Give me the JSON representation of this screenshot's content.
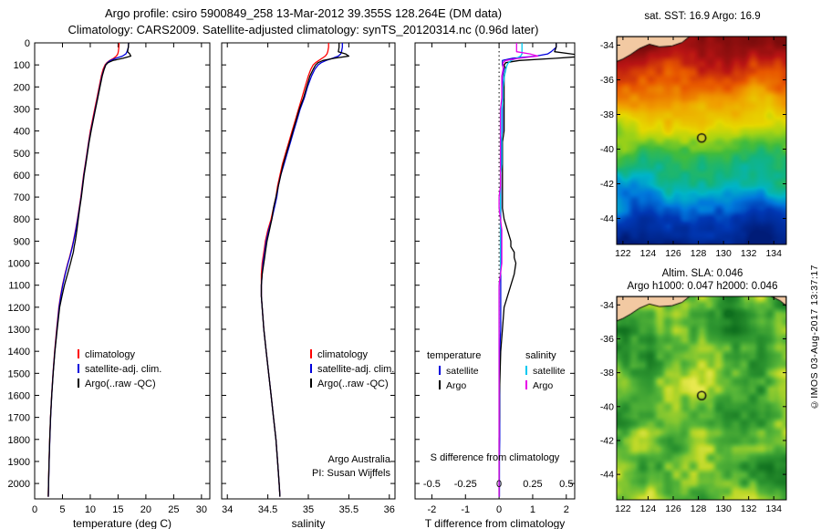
{
  "header": {
    "line1": "Argo profile: csiro 5900849_258 13-Mar-2012 39.355S 128.264E (DM data)",
    "line2": "Climatology: CARS2009. Satellite-adjusted climatology: synTS_20120314.nc (0.96d later)"
  },
  "watermark": "©IMOS 03-Aug-2017 13:37:17",
  "colors": {
    "climatology": "#ff0000",
    "satellite_adjusted": "#0000dd",
    "argo": "#000000",
    "satellite_salinity": "#00c8f0",
    "argo_salinity": "#e800e8"
  },
  "chart_data": [
    {
      "type": "line",
      "title": "",
      "xlabel": "temperature (deg C)",
      "ylabel": "",
      "xlim": [
        0,
        31.5
      ],
      "xticks": [
        0,
        5,
        10,
        15,
        20,
        25,
        30
      ],
      "ylim": [
        0,
        2070
      ],
      "yticks": [
        0,
        100,
        200,
        300,
        400,
        500,
        600,
        700,
        800,
        900,
        1000,
        1100,
        1200,
        1300,
        1400,
        1500,
        1600,
        1700,
        1800,
        1900,
        2000
      ],
      "depths_m": [
        0,
        20,
        40,
        50,
        60,
        70,
        80,
        90,
        100,
        120,
        150,
        200,
        250,
        300,
        350,
        400,
        450,
        500,
        550,
        600,
        650,
        700,
        750,
        800,
        850,
        900,
        925,
        950,
        975,
        1000,
        1050,
        1100,
        1150,
        1200,
        1300,
        1400,
        1500,
        1600,
        1700,
        1800,
        1900,
        2000,
        2060
      ],
      "legend": [
        "climatology",
        "satellite-adj. clim.",
        "Argo(..raw -QC)"
      ],
      "series": [
        {
          "name": "climatology",
          "color": "#ff0000",
          "values": [
            15.2,
            15.15,
            15.05,
            14.95,
            14.7,
            14.2,
            13.5,
            13.0,
            12.65,
            12.3,
            12.0,
            11.6,
            11.2,
            10.8,
            10.4,
            10.0,
            9.7,
            9.4,
            9.1,
            8.8,
            8.55,
            8.3,
            8.0,
            7.7,
            7.35,
            6.95,
            6.75,
            6.5,
            6.25,
            5.95,
            5.45,
            5.0,
            4.65,
            4.35,
            3.95,
            3.6,
            3.3,
            3.05,
            2.85,
            2.7,
            2.6,
            2.5,
            2.45
          ]
        },
        {
          "name": "satellite-adj. clim.",
          "color": "#0000dd",
          "values": [
            16.9,
            16.85,
            16.6,
            16.4,
            15.8,
            14.6,
            13.6,
            13.1,
            12.75,
            12.45,
            12.1,
            11.7,
            11.3,
            10.9,
            10.5,
            10.1,
            9.75,
            9.45,
            9.15,
            8.85,
            8.6,
            8.35,
            8.05,
            7.75,
            7.4,
            7.0,
            6.8,
            6.55,
            6.3,
            6.0,
            5.5,
            5.05,
            4.7,
            4.4,
            4.0,
            3.62,
            3.32,
            3.07,
            2.87,
            2.72,
            2.61,
            2.51,
            2.46
          ]
        },
        {
          "name": "Argo(..raw -QC)",
          "color": "#000000",
          "values": [
            16.9,
            16.85,
            16.7,
            17.1,
            17.3,
            15.9,
            14.1,
            13.2,
            12.8,
            12.5,
            12.15,
            11.75,
            11.35,
            10.95,
            10.55,
            10.15,
            9.8,
            9.5,
            9.2,
            8.9,
            8.65,
            8.4,
            8.1,
            7.85,
            7.6,
            7.3,
            7.1,
            6.95,
            6.7,
            6.45,
            5.9,
            5.35,
            4.9,
            4.5,
            4.05,
            3.65,
            3.33,
            3.06,
            2.86,
            2.7,
            2.6,
            2.5,
            2.45
          ]
        }
      ]
    },
    {
      "type": "line",
      "title": "",
      "xlabel": "salinity",
      "ylabel": "",
      "xlim": [
        33.93,
        36.07
      ],
      "xticks": [
        34,
        34.5,
        35,
        35.5,
        36
      ],
      "ylim": [
        0,
        2070
      ],
      "yticks": [
        0,
        100,
        200,
        300,
        400,
        500,
        600,
        700,
        800,
        900,
        1000,
        1100,
        1200,
        1300,
        1400,
        1500,
        1600,
        1700,
        1800,
        1900,
        2000
      ],
      "depths_m": [
        0,
        20,
        40,
        50,
        60,
        70,
        80,
        90,
        100,
        120,
        150,
        200,
        250,
        300,
        350,
        400,
        450,
        500,
        550,
        600,
        650,
        700,
        750,
        800,
        850,
        900,
        925,
        950,
        975,
        1000,
        1050,
        1100,
        1150,
        1200,
        1300,
        1400,
        1500,
        1600,
        1700,
        1800,
        1900,
        2000,
        2060
      ],
      "legend": [
        "climatology",
        "satellite-adj. clim.",
        "Argo(..raw -QC)"
      ],
      "annotations": [
        "Argo Australia",
        "PI: Susan Wijffels"
      ],
      "series": [
        {
          "name": "climatology",
          "color": "#ff0000",
          "values": [
            35.25,
            35.25,
            35.24,
            35.23,
            35.21,
            35.17,
            35.13,
            35.09,
            35.06,
            35.03,
            35.0,
            34.96,
            34.92,
            34.88,
            34.84,
            34.8,
            34.76,
            34.72,
            34.68,
            34.65,
            34.62,
            34.6,
            34.57,
            34.54,
            34.5,
            34.47,
            34.46,
            34.45,
            34.44,
            34.43,
            34.42,
            34.42,
            34.42,
            34.43,
            34.45,
            34.48,
            34.51,
            34.54,
            34.57,
            34.6,
            34.62,
            34.64,
            34.65
          ]
        },
        {
          "name": "satellite-adj. clim.",
          "color": "#0000dd",
          "values": [
            35.42,
            35.42,
            35.41,
            35.4,
            35.37,
            35.3,
            35.22,
            35.16,
            35.12,
            35.08,
            35.04,
            34.99,
            34.95,
            34.9,
            34.86,
            34.82,
            34.78,
            34.74,
            34.7,
            34.66,
            34.63,
            34.61,
            34.58,
            34.55,
            34.51,
            34.48,
            34.47,
            34.46,
            34.45,
            34.44,
            34.43,
            34.42,
            34.42,
            34.43,
            34.45,
            34.48,
            34.51,
            34.54,
            34.57,
            34.6,
            34.62,
            34.64,
            34.65
          ]
        },
        {
          "name": "Argo(..raw -QC)",
          "color": "#000000",
          "values": [
            35.38,
            35.38,
            35.37,
            35.46,
            35.5,
            35.32,
            35.18,
            35.12,
            35.09,
            35.06,
            35.02,
            34.98,
            34.94,
            34.89,
            34.85,
            34.81,
            34.77,
            34.73,
            34.69,
            34.66,
            34.63,
            34.6,
            34.57,
            34.55,
            34.52,
            34.49,
            34.48,
            34.47,
            34.46,
            34.45,
            34.43,
            34.42,
            34.42,
            34.43,
            34.45,
            34.48,
            34.51,
            34.54,
            34.57,
            34.6,
            34.62,
            34.64,
            34.65
          ]
        }
      ]
    },
    {
      "type": "line",
      "title": "",
      "xlabel": "T difference from climatology",
      "ylabel": "",
      "xlim": [
        -2.5,
        2.25
      ],
      "xticks": [
        -2,
        -1,
        0,
        1,
        2
      ],
      "ylim": [
        0,
        2070
      ],
      "yticks": [
        0,
        100,
        200,
        300,
        400,
        500,
        600,
        700,
        800,
        900,
        1000,
        1100,
        1200,
        1300,
        1400,
        1500,
        1600,
        1700,
        1800,
        1900,
        2000
      ],
      "s_axis": {
        "label": "S difference from climatology",
        "ticks": [
          -0.5,
          -0.25,
          0,
          0.25,
          0.5
        ],
        "scale_vs_T": 4
      },
      "legend": {
        "temperature": [
          "satellite",
          "Argo"
        ],
        "salinity": [
          "satellite",
          "Argo"
        ]
      },
      "series_derived": [
        {
          "name": "satellite",
          "axis": "T",
          "source": "temperature",
          "minuend": "satellite-adj. clim.",
          "subtrahend": "climatology",
          "color": "#0000dd"
        },
        {
          "name": "Argo",
          "axis": "T",
          "source": "temperature",
          "minuend": "Argo(..raw -QC)",
          "subtrahend": "climatology",
          "color": "#000000"
        },
        {
          "name": "satellite",
          "axis": "S",
          "source": "salinity",
          "minuend": "satellite-adj. clim.",
          "subtrahend": "climatology",
          "color": "#00c8f0"
        },
        {
          "name": "Argo",
          "axis": "S",
          "source": "salinity",
          "minuend": "Argo(..raw -QC)",
          "subtrahend": "climatology",
          "color": "#e800e8"
        }
      ]
    },
    {
      "type": "heatmap",
      "variant": "sst",
      "title": "sat. SST: 16.9  Argo: 16.9",
      "xlim": [
        121.5,
        135
      ],
      "ylim": [
        -45.5,
        -33.5
      ],
      "xticks": [
        122,
        124,
        126,
        128,
        130,
        132,
        134
      ],
      "yticks": [
        -34,
        -36,
        -38,
        -40,
        -42,
        -44
      ],
      "marker": {
        "lon": 128.264,
        "lat": -39.355,
        "fill": "#c8cc20"
      },
      "land_color": "#f2c9a2",
      "land": [
        [
          [
            121.5,
            -33.5
          ],
          [
            127.3,
            -33.5
          ],
          [
            126.7,
            -33.85
          ],
          [
            125.9,
            -34.05
          ],
          [
            124.9,
            -34.1
          ],
          [
            124.1,
            -33.95
          ],
          [
            123.3,
            -34.2
          ],
          [
            122.6,
            -34.55
          ],
          [
            122.0,
            -34.8
          ],
          [
            121.5,
            -34.95
          ]
        ]
      ],
      "palette": [
        [
          0.0,
          "#7a0c0c"
        ],
        [
          0.1,
          "#b81414"
        ],
        [
          0.2,
          "#e85800"
        ],
        [
          0.3,
          "#f0a000"
        ],
        [
          0.4,
          "#e6d800"
        ],
        [
          0.48,
          "#a6d414"
        ],
        [
          0.56,
          "#42bc3c"
        ],
        [
          0.64,
          "#14b47c"
        ],
        [
          0.72,
          "#00b4c8"
        ],
        [
          0.8,
          "#0078dc"
        ],
        [
          0.88,
          "#0038b4"
        ],
        [
          1.0,
          "#001c78"
        ]
      ]
    },
    {
      "type": "heatmap",
      "variant": "sla",
      "title_line1": "Altim. SLA: 0.046",
      "title_line2": "Argo h1000: 0.047 h2000: 0.046",
      "xlim": [
        121.5,
        135
      ],
      "ylim": [
        -45.5,
        -33.5
      ],
      "xticks": [
        122,
        124,
        126,
        128,
        130,
        132,
        134
      ],
      "yticks": [
        -34,
        -36,
        -38,
        -40,
        -42,
        -44
      ],
      "marker": {
        "lon": 128.264,
        "lat": -39.355
      },
      "land_color": "#f2c9a2",
      "land": [
        [
          [
            121.5,
            -33.5
          ],
          [
            127.3,
            -33.5
          ],
          [
            126.7,
            -33.85
          ],
          [
            125.9,
            -34.05
          ],
          [
            124.9,
            -34.1
          ],
          [
            124.1,
            -33.95
          ],
          [
            123.3,
            -34.2
          ],
          [
            122.6,
            -34.55
          ],
          [
            122.0,
            -34.8
          ],
          [
            121.5,
            -34.95
          ]
        ],
        [
          [
            133.8,
            -33.5
          ],
          [
            135,
            -33.5
          ],
          [
            135,
            -34.05
          ],
          [
            134.5,
            -33.75
          ]
        ]
      ],
      "palette": [
        [
          0.0,
          "#0e6e1e"
        ],
        [
          0.3,
          "#2e9630"
        ],
        [
          0.5,
          "#55b438"
        ],
        [
          0.65,
          "#86c830"
        ],
        [
          0.8,
          "#bcd828"
        ],
        [
          1.0,
          "#e8e84e"
        ]
      ]
    }
  ]
}
